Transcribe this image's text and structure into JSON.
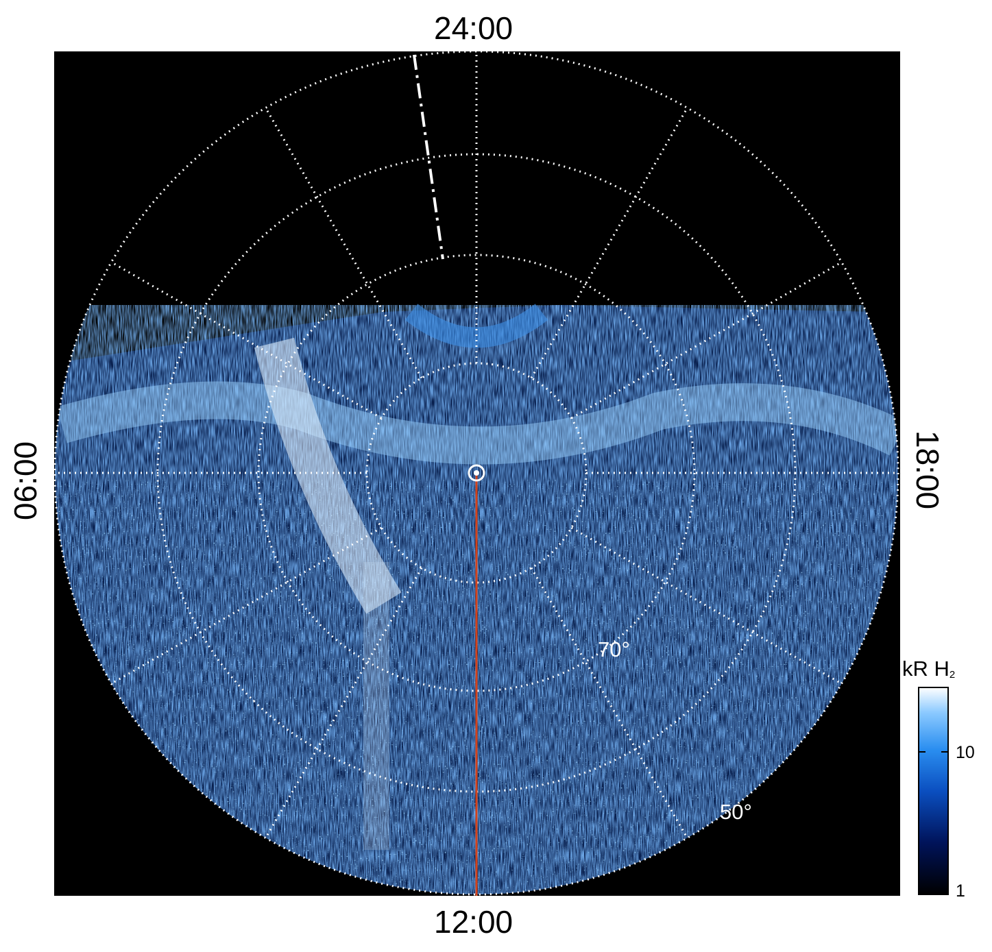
{
  "figure": {
    "local_time_labels": {
      "top": "24:00",
      "bottom": "12:00",
      "left": "06:00",
      "right": "18:00"
    },
    "latitude_labels": [
      "70°",
      "50°"
    ],
    "colorbar": {
      "title": "kR H",
      "title_subscript": "2",
      "ticks": [
        "10",
        "1"
      ],
      "scale": "log",
      "colors": [
        "#000000",
        "#00135a",
        "#0b4fc0",
        "#2a8ef0",
        "#8ccaff",
        "#ffffff"
      ]
    },
    "plot_background": "#000000",
    "grid_color": "#ffffff",
    "meridian_line_color": "#d2431c"
  }
}
